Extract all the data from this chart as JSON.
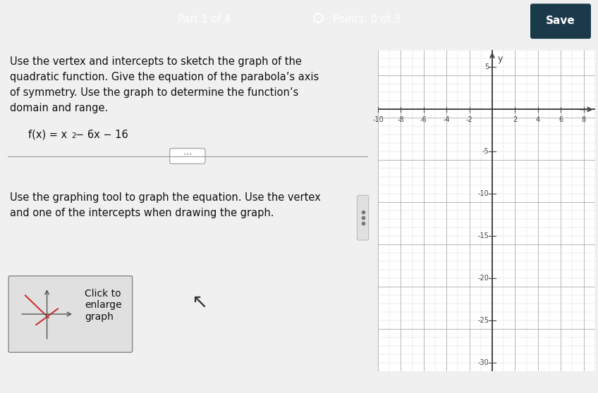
{
  "title_bar_color": "#2878a0",
  "title_bar_text_left": "Part 1 of 4",
  "title_bar_text_center": "Points: 0 of 3",
  "title_bar_text_right": "Save",
  "left_panel_bg": "#f0f0f0",
  "right_panel_bg": "#f0f0f0",
  "graph_bg": "#ffffff",
  "problem_text_line1": "Use the vertex and intercepts to sketch the graph of the",
  "problem_text_line2": "quadratic function. Give the equation of the parabola’s axis",
  "problem_text_line3": "of symmetry. Use the graph to determine the function’s",
  "problem_text_line4": "domain and range.",
  "function_text": "f(x) = x",
  "tool_text_line1": "Use the graphing tool to graph the equation. Use the vertex",
  "tool_text_line2": "and one of the intercepts when drawing the graph.",
  "click_text_line1": "Click to",
  "click_text_line2": "enlarge",
  "click_text_line3": "graph",
  "axis_color": "#444444",
  "grid_major_color": "#aaaaaa",
  "grid_minor_color": "#dddddd",
  "x_min": -10,
  "x_max": 9,
  "y_min": -31,
  "y_max": 7,
  "x_label_ticks": [
    -10,
    -8,
    -6,
    -4,
    -2,
    2,
    4,
    6,
    8
  ],
  "y_label_ticks": [
    5,
    -5,
    -10,
    -15,
    -20,
    -25,
    -30
  ],
  "separator_color": "#999999",
  "save_btn_color": "#1a3a4a",
  "scrollbar_color": "#cccccc"
}
